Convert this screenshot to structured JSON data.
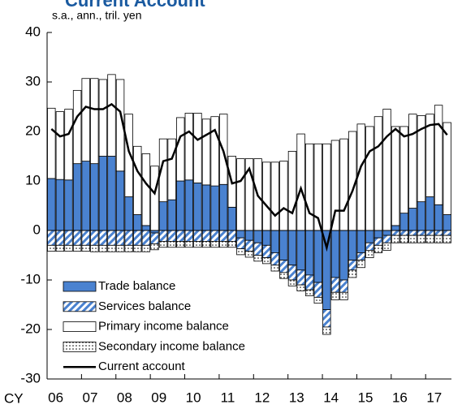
{
  "chart_data": {
    "type": "stacked_bar_line",
    "title": "Current Account",
    "subtitle": "s.a., ann., tril. yen",
    "xlabel": "CY",
    "categories": [
      "06",
      null,
      null,
      null,
      "07",
      null,
      null,
      null,
      "08",
      null,
      null,
      null,
      "09",
      null,
      null,
      null,
      "10",
      null,
      null,
      null,
      "11",
      null,
      null,
      null,
      "12",
      null,
      null,
      null,
      "13",
      null,
      null,
      null,
      "14",
      null,
      null,
      null,
      "15",
      null,
      null,
      null,
      "16",
      null,
      null,
      null,
      "17",
      null,
      null
    ],
    "series": [
      {
        "name": "Trade balance",
        "color": "#4a82d0",
        "pattern": "solid",
        "values": [
          10.5,
          10.3,
          10.2,
          13.5,
          14.0,
          13.5,
          15.0,
          15.0,
          12.0,
          6.8,
          3.2,
          1.0,
          -0.5,
          5.8,
          6.2,
          10.0,
          10.2,
          9.6,
          9.2,
          9.0,
          9.3,
          4.7,
          -1.5,
          -2.0,
          -2.5,
          -3.0,
          -4.5,
          -6.0,
          -7.0,
          -8.0,
          -9.0,
          -10.5,
          -16.0,
          -9.5,
          -10.0,
          -6.0,
          -4.5,
          -2.5,
          -1.5,
          -1.0,
          1.0,
          3.5,
          4.5,
          5.8,
          6.8,
          5.2,
          3.2
        ]
      },
      {
        "name": "Services balance",
        "color": "#4a82d0",
        "pattern": "hatch",
        "values": [
          -3.0,
          -3.0,
          -3.0,
          -3.0,
          -3.0,
          -3.0,
          -3.0,
          -3.0,
          -3.0,
          -3.0,
          -3.0,
          -3.0,
          -2.2,
          -2.2,
          -2.2,
          -2.2,
          -2.2,
          -2.2,
          -2.2,
          -2.2,
          -2.2,
          -2.2,
          -2.2,
          -2.2,
          -2.5,
          -2.5,
          -2.5,
          -2.5,
          -3.0,
          -3.0,
          -3.0,
          -3.0,
          -3.5,
          -3.0,
          -2.5,
          -2.0,
          -1.5,
          -1.5,
          -1.5,
          -1.5,
          -1.0,
          -1.0,
          -1.0,
          -1.0,
          -1.0,
          -1.0,
          -1.0
        ]
      },
      {
        "name": "Primary income balance",
        "color": "#ffffff",
        "pattern": "solid",
        "values": [
          14.2,
          13.7,
          14.3,
          14.8,
          16.7,
          17.2,
          15.5,
          16.5,
          18.5,
          16.7,
          13.8,
          14.5,
          13.0,
          12.7,
          12.3,
          12.8,
          13.5,
          14.1,
          13.3,
          14.0,
          14.2,
          10.3,
          14.5,
          14.5,
          14.5,
          13.8,
          13.8,
          14.0,
          16.0,
          19.5,
          17.5,
          17.5,
          17.5,
          18.2,
          18.5,
          20.0,
          21.5,
          21.0,
          23.0,
          24.5,
          20.0,
          17.5,
          19.0,
          17.4,
          16.7,
          20.1,
          18.6
        ]
      },
      {
        "name": "Secondary income balance",
        "color": "#000000",
        "pattern": "dots",
        "values": [
          -1.2,
          -1.2,
          -1.2,
          -1.2,
          -1.2,
          -1.3,
          -1.3,
          -1.3,
          -1.3,
          -1.3,
          -1.3,
          -1.3,
          -1.2,
          -1.2,
          -1.2,
          -1.2,
          -1.2,
          -1.2,
          -1.2,
          -1.2,
          -1.2,
          -1.2,
          -1.2,
          -1.2,
          -1.2,
          -1.2,
          -1.2,
          -1.2,
          -1.2,
          -1.2,
          -1.2,
          -1.2,
          -1.5,
          -1.5,
          -1.5,
          -1.5,
          -1.5,
          -1.5,
          -1.5,
          -1.5,
          -1.5,
          -1.5,
          -1.5,
          -1.5,
          -1.5,
          -1.5,
          -1.5
        ]
      },
      {
        "name": "Current account",
        "color": "#000000",
        "kind": "line",
        "values": [
          20.5,
          19.0,
          19.5,
          23.0,
          25.0,
          24.5,
          24.5,
          25.5,
          24.0,
          16.0,
          12.0,
          9.5,
          7.5,
          14.0,
          14.5,
          19.0,
          20.0,
          18.3,
          19.3,
          20.3,
          16.0,
          9.5,
          10.0,
          12.5,
          7.0,
          5.0,
          3.0,
          4.5,
          3.5,
          8.5,
          3.5,
          2.5,
          -3.5,
          4.0,
          4.0,
          8.0,
          13.0,
          16.0,
          17.0,
          19.0,
          20.5,
          19.0,
          19.5,
          20.5,
          21.3,
          21.5,
          19.3
        ]
      }
    ],
    "ylim": [
      -30,
      40
    ],
    "yticks": [
      -30,
      -20,
      -10,
      0,
      10,
      20,
      30,
      40
    ],
    "legend": "lower left"
  }
}
